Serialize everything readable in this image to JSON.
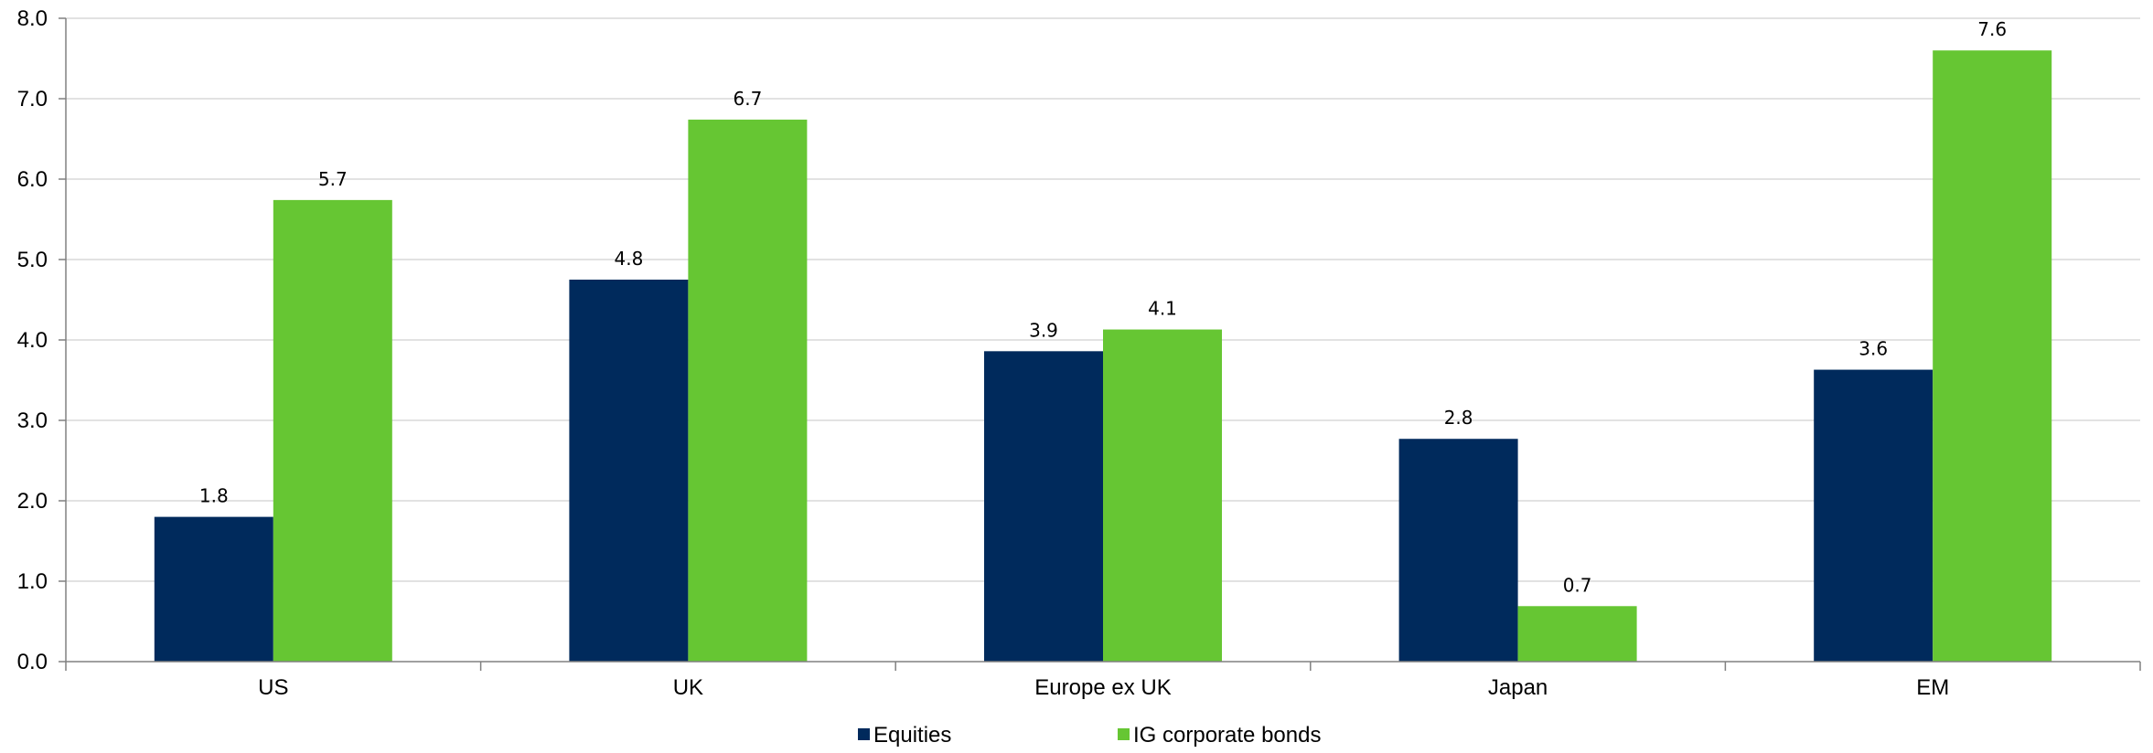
{
  "chart_data": {
    "type": "bar",
    "categories": [
      "US",
      "UK",
      "Europe ex UK",
      "Japan",
      "EM"
    ],
    "series": [
      {
        "name": "Equities",
        "color": "#002a5c",
        "values": [
          1.8,
          4.75,
          3.86,
          2.77,
          3.63
        ],
        "labels": [
          "1.8",
          "4.8",
          "3.9",
          "2.8",
          "3.6"
        ]
      },
      {
        "name": "IG corporate bonds",
        "color": "#66c633",
        "values": [
          5.74,
          6.74,
          4.13,
          0.69,
          7.6
        ],
        "labels": [
          "5.7",
          "6.7",
          "4.1",
          "0.7",
          "7.6"
        ]
      }
    ],
    "ylim": [
      0,
      8
    ],
    "yticks": [
      "0.0",
      "1.0",
      "2.0",
      "3.0",
      "4.0",
      "5.0",
      "6.0",
      "7.0",
      "8.0"
    ],
    "ytick_values": [
      0,
      1,
      2,
      3,
      4,
      5,
      6,
      7,
      8
    ],
    "grid": true,
    "legend_position": "bottom-center",
    "gridline_color": "#d9d9d9",
    "axis_color": "#808080"
  }
}
